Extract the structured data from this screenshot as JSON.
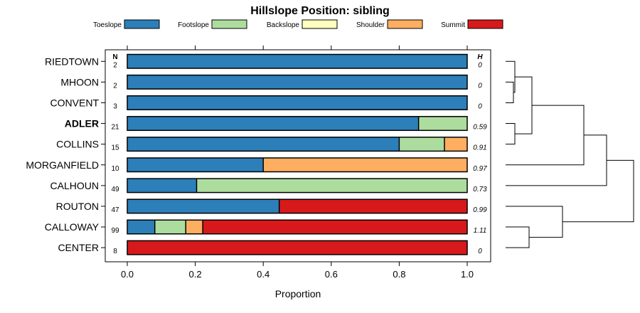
{
  "chart_data": {
    "type": "bar",
    "stacked": true,
    "orientation": "horizontal",
    "title": "Hillslope Position: sibling",
    "xlabel": "Proportion",
    "ylabel": "",
    "xlim": [
      0,
      1
    ],
    "x_ticks": [
      "0.0",
      "0.2",
      "0.4",
      "0.6",
      "0.8",
      "1.0"
    ],
    "x_tick_values": [
      0,
      0.2,
      0.4,
      0.6,
      0.8,
      1.0
    ],
    "categories": [
      "RIEDTOWN",
      "MHOON",
      "CONVENT",
      "ADLER",
      "COLLINS",
      "MORGANFIELD",
      "CALHOUN",
      "ROUTON",
      "CALLOWAY",
      "CENTER"
    ],
    "highlight_category": "ADLER",
    "n_header": "N",
    "h_header": "H",
    "n_values": [
      "2",
      "2",
      "3",
      "21",
      "15",
      "10",
      "49",
      "47",
      "99",
      "8"
    ],
    "h_values": [
      "0",
      "0",
      "0",
      "0.59",
      "0.91",
      "0.97",
      "0.73",
      "0.99",
      "1.11",
      "0"
    ],
    "series": [
      {
        "name": "Toeslope",
        "color": "#2c7fb8",
        "values": [
          1.0,
          1.0,
          1.0,
          0.857,
          0.8,
          0.4,
          0.204,
          0.447,
          0.081,
          0.0
        ]
      },
      {
        "name": "Footslope",
        "color": "#addd9e",
        "values": [
          0.0,
          0.0,
          0.0,
          0.143,
          0.133,
          0.0,
          0.796,
          0.0,
          0.091,
          0.0
        ]
      },
      {
        "name": "Backslope",
        "color": "#ffffbf",
        "values": [
          0.0,
          0.0,
          0.0,
          0.0,
          0.0,
          0.0,
          0.0,
          0.0,
          0.0,
          0.0
        ]
      },
      {
        "name": "Shoulder",
        "color": "#fdae61",
        "values": [
          0.0,
          0.0,
          0.0,
          0.0,
          0.067,
          0.6,
          0.0,
          0.0,
          0.05,
          0.0
        ]
      },
      {
        "name": "Summit",
        "color": "#d7191c",
        "values": [
          0.0,
          0.0,
          0.0,
          0.0,
          0.0,
          0.0,
          0.0,
          0.553,
          0.778,
          1.0
        ]
      }
    ],
    "legend_position": "top",
    "dendrogram": {
      "orientation": "right",
      "leaf_order": [
        "RIEDTOWN",
        "MHOON",
        "CONVENT",
        "ADLER",
        "COLLINS",
        "MORGANFIELD",
        "CALHOUN",
        "ROUTON",
        "CALLOWAY",
        "CENTER"
      ],
      "merges": [
        {
          "a": "MHOON",
          "b": "CONVENT",
          "height": 0.11
        },
        {
          "a": "RIEDTOWN",
          "b": "MHOON+CONVENT",
          "height": 0.13
        },
        {
          "a": "ADLER",
          "b": "COLLINS",
          "height": 0.13
        },
        {
          "a": "RIEDTOWN+MHOON+CONVENT",
          "b": "ADLER+COLLINS",
          "height": 0.37
        },
        {
          "a": "RIEDTOWN+MHOON+CONVENT+ADLER+COLLINS",
          "b": "MORGANFIELD",
          "height": 1.1
        },
        {
          "a": "RIEDTOWN+MHOON+CONVENT+ADLER+COLLINS+MORGANFIELD",
          "b": "CALHOUN",
          "height": 1.42
        },
        {
          "a": "CALLOWAY",
          "b": "CENTER",
          "height": 0.33
        },
        {
          "a": "ROUTON",
          "b": "CALLOWAY+CENTER",
          "height": 0.8
        },
        {
          "a": "RIEDTOWN+MHOON+CONVENT+ADLER+COLLINS+MORGANFIELD+CALHOUN",
          "b": "ROUTON+CALLOWAY+CENTER",
          "height": 1.8
        }
      ]
    }
  }
}
